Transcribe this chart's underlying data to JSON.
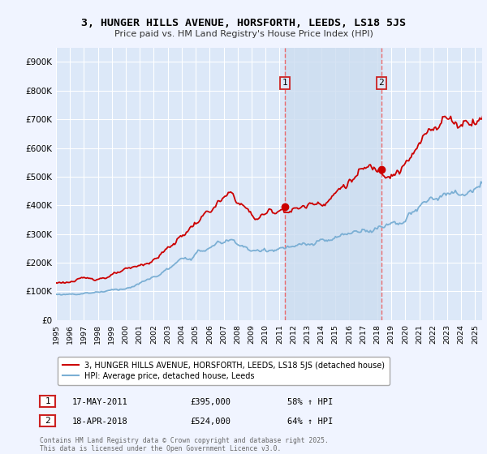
{
  "title_line1": "3, HUNGER HILLS AVENUE, HORSFORTH, LEEDS, LS18 5JS",
  "title_line2": "Price paid vs. HM Land Registry's House Price Index (HPI)",
  "background_color": "#f0f4ff",
  "plot_bg_color": "#dce8f8",
  "ylim": [
    0,
    950000
  ],
  "yticks": [
    0,
    100000,
    200000,
    300000,
    400000,
    500000,
    600000,
    700000,
    800000,
    900000
  ],
  "ytick_labels": [
    "£0",
    "£100K",
    "£200K",
    "£300K",
    "£400K",
    "£500K",
    "£600K",
    "£700K",
    "£800K",
    "£900K"
  ],
  "xlim_start": 1995.0,
  "xlim_end": 2025.5,
  "sale1_x": 2011.37,
  "sale1_y": 395000,
  "sale1_label": "1",
  "sale1_date": "17-MAY-2011",
  "sale1_price": "£395,000",
  "sale1_hpi": "58% ↑ HPI",
  "sale2_x": 2018.29,
  "sale2_y": 524000,
  "sale2_label": "2",
  "sale2_date": "18-APR-2018",
  "sale2_price": "£524,000",
  "sale2_hpi": "64% ↑ HPI",
  "red_line_color": "#cc0000",
  "blue_line_color": "#7bafd4",
  "vline_color": "#ee5555",
  "span_color": "#dce8f8",
  "legend_label_red": "3, HUNGER HILLS AVENUE, HORSFORTH, LEEDS, LS18 5JS (detached house)",
  "legend_label_blue": "HPI: Average price, detached house, Leeds",
  "footer": "Contains HM Land Registry data © Crown copyright and database right 2025.\nThis data is licensed under the Open Government Licence v3.0."
}
